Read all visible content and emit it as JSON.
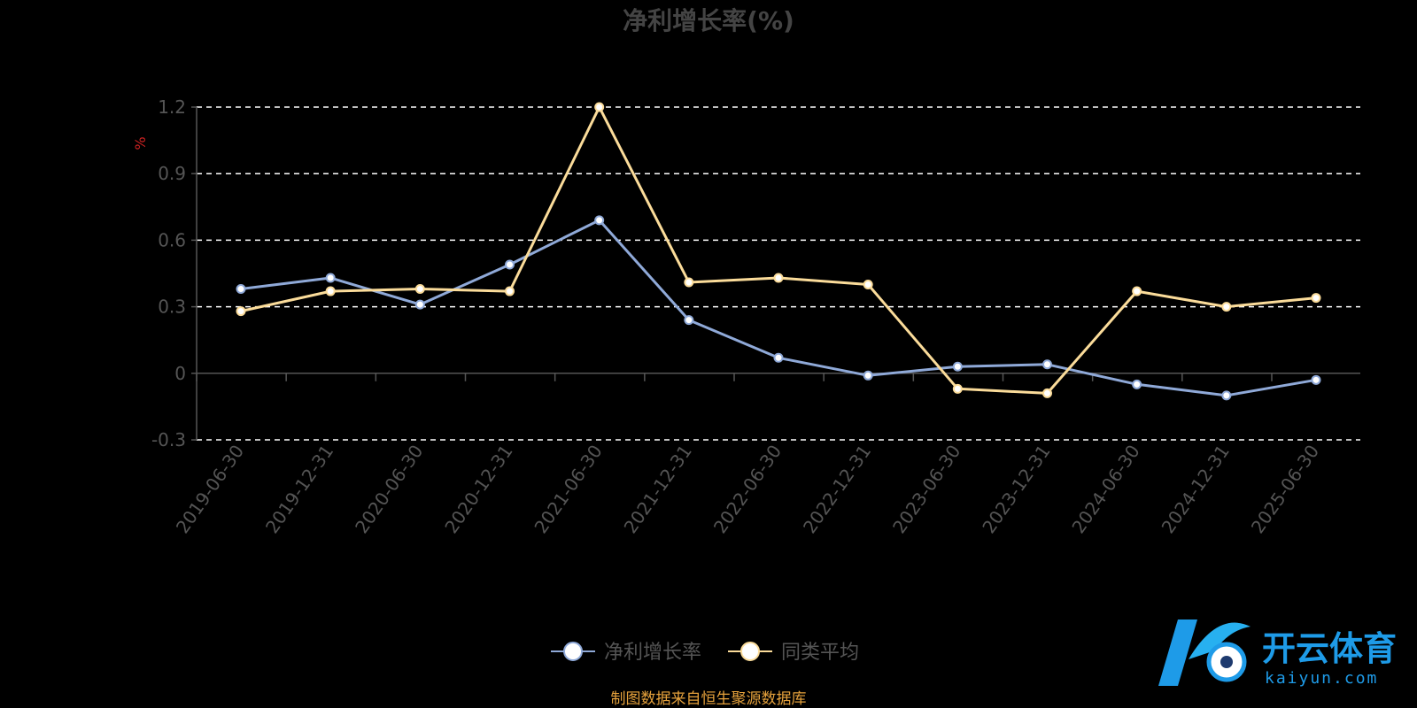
{
  "colors": {
    "background": "#000000",
    "series_blue": "#8fa9d8",
    "series_yellow": "#fbdc9a",
    "grid": "#ffffff",
    "axis": "#555555",
    "unit": "#cc2222",
    "source": "#e6a23c",
    "logo_blue": "#1e9be8"
  },
  "chart_data": {
    "type": "line",
    "title": "净利增长率(%)",
    "ylabel": "%",
    "ylim": [
      -0.3,
      1.2
    ],
    "yticks": [
      "1.2",
      "0.9",
      "0.6",
      "0.3",
      "0",
      "-0.3"
    ],
    "ytick_values": [
      1.2,
      0.9,
      0.6,
      0.3,
      0,
      -0.3
    ],
    "grid": true,
    "legend_position": "bottom-center",
    "categories": [
      "2019-06-30",
      "2019-12-31",
      "2020-06-30",
      "2020-12-31",
      "2021-06-30",
      "2021-12-31",
      "2022-06-30",
      "2022-12-31",
      "2023-06-30",
      "2023-12-31",
      "2024-06-30",
      "2024-12-31",
      "2025-06-30"
    ],
    "series": [
      {
        "name": "净利增长率",
        "color": "#8fa9d8",
        "values": [
          0.38,
          0.43,
          0.31,
          0.49,
          0.69,
          0.24,
          0.07,
          -0.01,
          0.03,
          0.04,
          -0.05,
          -0.1,
          -0.03
        ]
      },
      {
        "name": "同类平均",
        "color": "#fbdc9a",
        "values": [
          0.28,
          0.37,
          0.38,
          0.37,
          1.2,
          0.41,
          0.43,
          0.4,
          -0.07,
          -0.09,
          0.37,
          0.3,
          0.34
        ]
      }
    ]
  },
  "source_note": "制图数据来自恒生聚源数据库",
  "watermark": {
    "name_cn": "开云体育",
    "domain": "kaiyun.com"
  }
}
